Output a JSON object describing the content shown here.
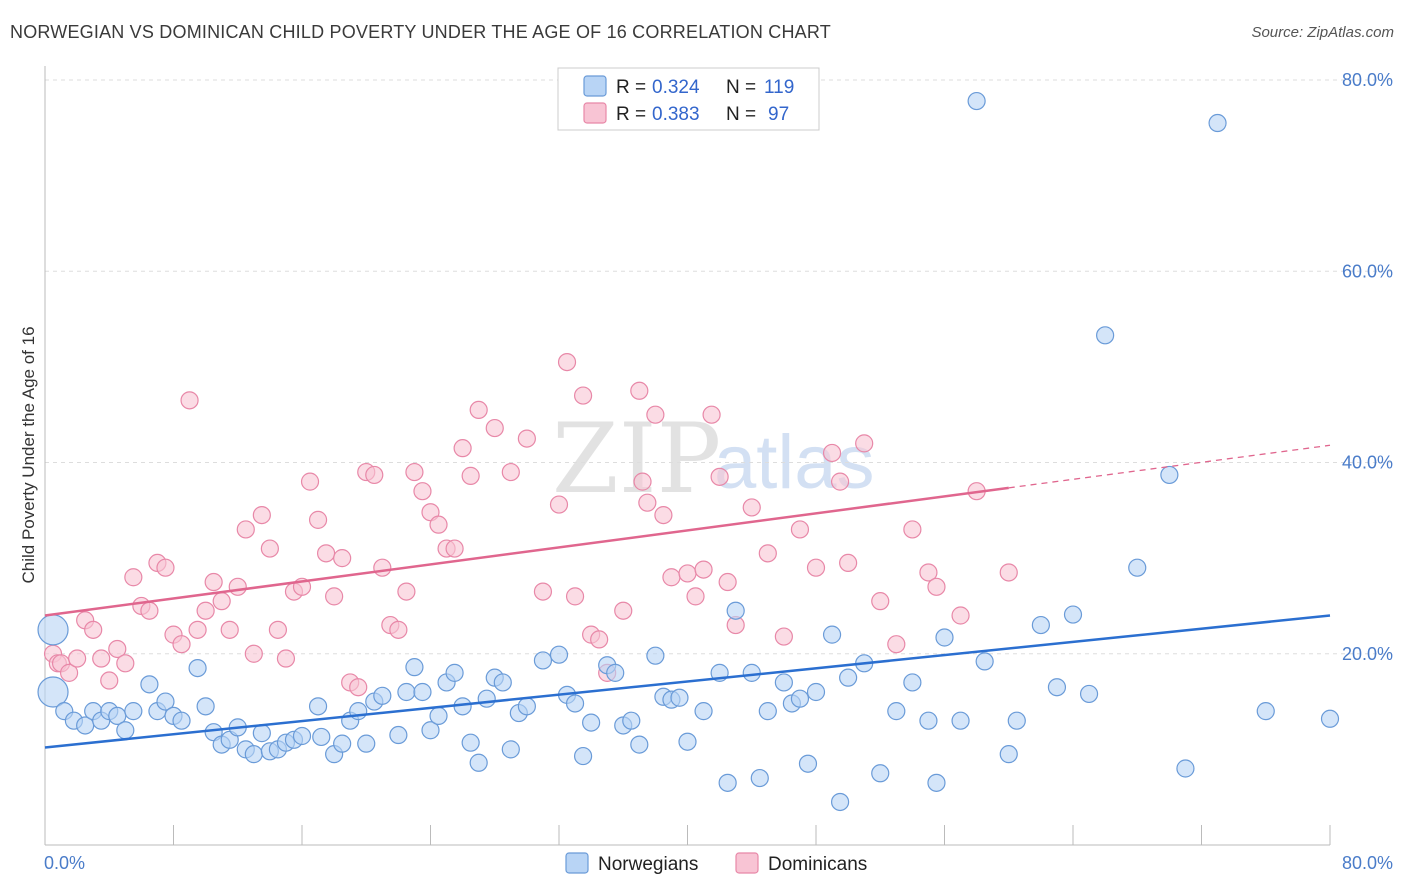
{
  "header": {
    "title": "NORWEGIAN VS DOMINICAN CHILD POVERTY UNDER THE AGE OF 16 CORRELATION CHART",
    "source": "Source: ZipAtlas.com"
  },
  "watermark": {
    "zip": "ZIP",
    "atlas": "atlas"
  },
  "legend": {
    "r_label": "R =",
    "n_label": "N =",
    "rows": [
      {
        "r": "0.324",
        "n": "119"
      },
      {
        "r": "0.383",
        "n": "97"
      }
    ]
  },
  "colors": {
    "norwegian_fill": "#b8d4f5",
    "norwegian_stroke": "#6a9bd8",
    "norwegian_line": "#2b6fd0",
    "dominican_fill": "#f8c4d4",
    "dominican_stroke": "#e888a8",
    "dominican_line": "#e0668e",
    "axis_text": "#4a7cc9",
    "grid": "#dddddd"
  },
  "chart_data": {
    "type": "scatter",
    "title": "NORWEGIAN VS DOMINICAN CHILD POVERTY UNDER THE AGE OF 16 CORRELATION CHART",
    "xlabel": "",
    "ylabel": "Child Poverty Under the Age of 16",
    "xlim": [
      0,
      80
    ],
    "ylim": [
      0,
      80
    ],
    "x_tick_labels": [
      "0.0%",
      "80.0%"
    ],
    "y_ticks": [
      20,
      40,
      60,
      80
    ],
    "y_tick_labels": [
      "20.0%",
      "40.0%",
      "60.0%",
      "80.0%"
    ],
    "grid": true,
    "legend_position": "bottom",
    "series": [
      {
        "name": "Norwegians",
        "trend": {
          "x": [
            0,
            80
          ],
          "y": [
            10.2,
            24.0
          ],
          "dashed_from": null
        },
        "points": [
          [
            0.5,
            22.5
          ],
          [
            0.5,
            16
          ],
          [
            1.2,
            14
          ],
          [
            1.8,
            13
          ],
          [
            2.5,
            12.5
          ],
          [
            3,
            14
          ],
          [
            3.5,
            13
          ],
          [
            4,
            14
          ],
          [
            4.5,
            13.5
          ],
          [
            5,
            12
          ],
          [
            5.5,
            14
          ],
          [
            6.5,
            16.8
          ],
          [
            7,
            14
          ],
          [
            7.5,
            15
          ],
          [
            8,
            13.5
          ],
          [
            8.5,
            13
          ],
          [
            9.5,
            18.5
          ],
          [
            10,
            14.5
          ],
          [
            10.5,
            11.8
          ],
          [
            11,
            10.5
          ],
          [
            11.5,
            11
          ],
          [
            12,
            12.3
          ],
          [
            12.5,
            10
          ],
          [
            13,
            9.5
          ],
          [
            13.5,
            11.7
          ],
          [
            14,
            9.8
          ],
          [
            14.5,
            10
          ],
          [
            15,
            10.7
          ],
          [
            15.5,
            11
          ],
          [
            16,
            11.4
          ],
          [
            17,
            14.5
          ],
          [
            17.2,
            11.3
          ],
          [
            18,
            9.5
          ],
          [
            18.5,
            10.6
          ],
          [
            19,
            13
          ],
          [
            19.5,
            14
          ],
          [
            20,
            10.6
          ],
          [
            20.5,
            15
          ],
          [
            21,
            15.6
          ],
          [
            22,
            11.5
          ],
          [
            22.5,
            16
          ],
          [
            23,
            18.6
          ],
          [
            23.5,
            16
          ],
          [
            24,
            12
          ],
          [
            24.5,
            13.5
          ],
          [
            25,
            17
          ],
          [
            25.5,
            18
          ],
          [
            26,
            14.5
          ],
          [
            26.5,
            10.7
          ],
          [
            27,
            8.6
          ],
          [
            27.5,
            15.3
          ],
          [
            28,
            17.5
          ],
          [
            28.5,
            17
          ],
          [
            29,
            10
          ],
          [
            29.5,
            13.8
          ],
          [
            30,
            14.5
          ],
          [
            31,
            19.3
          ],
          [
            32,
            19.9
          ],
          [
            32.5,
            15.7
          ],
          [
            33,
            14.8
          ],
          [
            33.5,
            9.3
          ],
          [
            34,
            12.8
          ],
          [
            35,
            18.8
          ],
          [
            35.5,
            18
          ],
          [
            36,
            12.5
          ],
          [
            36.5,
            13
          ],
          [
            37,
            10.5
          ],
          [
            38,
            19.8
          ],
          [
            38.5,
            15.5
          ],
          [
            39,
            15.2
          ],
          [
            39.5,
            15.4
          ],
          [
            40,
            10.8
          ],
          [
            41,
            14
          ],
          [
            42,
            18
          ],
          [
            42.5,
            6.5
          ],
          [
            43,
            24.5
          ],
          [
            44,
            18
          ],
          [
            44.5,
            7
          ],
          [
            45,
            14
          ],
          [
            46,
            17
          ],
          [
            46.5,
            14.8
          ],
          [
            47,
            15.3
          ],
          [
            47.5,
            8.5
          ],
          [
            48,
            16
          ],
          [
            49,
            22
          ],
          [
            49.5,
            4.5
          ],
          [
            50,
            17.5
          ],
          [
            51,
            19
          ],
          [
            52,
            7.5
          ],
          [
            53,
            14
          ],
          [
            54,
            17
          ],
          [
            55,
            13
          ],
          [
            55.5,
            6.5
          ],
          [
            56,
            21.7
          ],
          [
            57,
            13
          ],
          [
            58,
            77.8
          ],
          [
            58.5,
            19.2
          ],
          [
            60,
            9.5
          ],
          [
            60.5,
            13
          ],
          [
            62,
            23
          ],
          [
            63,
            16.5
          ],
          [
            64,
            24.1
          ],
          [
            65,
            15.8
          ],
          [
            66,
            53.3
          ],
          [
            68,
            29
          ],
          [
            70,
            38.7
          ],
          [
            71,
            8
          ],
          [
            73,
            75.5
          ],
          [
            76,
            14
          ],
          [
            80,
            13.2
          ]
        ]
      },
      {
        "name": "Dominicans",
        "trend": {
          "x": [
            0,
            80
          ],
          "y": [
            24.0,
            41.8
          ],
          "dashed_from": 60
        },
        "points": [
          [
            0.5,
            20
          ],
          [
            0.8,
            19
          ],
          [
            1,
            19
          ],
          [
            1.5,
            18
          ],
          [
            2,
            19.5
          ],
          [
            2.5,
            23.5
          ],
          [
            3,
            22.5
          ],
          [
            3.5,
            19.5
          ],
          [
            4,
            17.2
          ],
          [
            4.5,
            20.5
          ],
          [
            5,
            19
          ],
          [
            5.5,
            28
          ],
          [
            6,
            25
          ],
          [
            6.5,
            24.5
          ],
          [
            7,
            29.5
          ],
          [
            7.5,
            29
          ],
          [
            8,
            22
          ],
          [
            8.5,
            21
          ],
          [
            9,
            46.5
          ],
          [
            9.5,
            22.5
          ],
          [
            10,
            24.5
          ],
          [
            10.5,
            27.5
          ],
          [
            11,
            25.5
          ],
          [
            11.5,
            22.5
          ],
          [
            12,
            27
          ],
          [
            12.5,
            33
          ],
          [
            13,
            20
          ],
          [
            13.5,
            34.5
          ],
          [
            14,
            31
          ],
          [
            14.5,
            22.5
          ],
          [
            15,
            19.5
          ],
          [
            15.5,
            26.5
          ],
          [
            16,
            27
          ],
          [
            16.5,
            38
          ],
          [
            17,
            34
          ],
          [
            17.5,
            30.5
          ],
          [
            18,
            26
          ],
          [
            18.5,
            30
          ],
          [
            19,
            17
          ],
          [
            19.5,
            16.5
          ],
          [
            20,
            39
          ],
          [
            20.5,
            38.7
          ],
          [
            21,
            29
          ],
          [
            21.5,
            23
          ],
          [
            22,
            22.5
          ],
          [
            22.5,
            26.5
          ],
          [
            23,
            39
          ],
          [
            23.5,
            37
          ],
          [
            24,
            34.8
          ],
          [
            24.5,
            33.5
          ],
          [
            25,
            31
          ],
          [
            25.5,
            31
          ],
          [
            26,
            41.5
          ],
          [
            26.5,
            38.6
          ],
          [
            27,
            45.5
          ],
          [
            28,
            43.6
          ],
          [
            29,
            39
          ],
          [
            30,
            42.5
          ],
          [
            31,
            26.5
          ],
          [
            32,
            35.6
          ],
          [
            32.5,
            50.5
          ],
          [
            33,
            26
          ],
          [
            33.5,
            47
          ],
          [
            34,
            22
          ],
          [
            34.5,
            21.5
          ],
          [
            35,
            18
          ],
          [
            36,
            24.5
          ],
          [
            37,
            47.5
          ],
          [
            37.2,
            38
          ],
          [
            37.5,
            35.8
          ],
          [
            38,
            45
          ],
          [
            38.5,
            34.5
          ],
          [
            39,
            28
          ],
          [
            40,
            28.4
          ],
          [
            40.5,
            26
          ],
          [
            41,
            28.8
          ],
          [
            41.5,
            45
          ],
          [
            42,
            38.5
          ],
          [
            42.5,
            27.5
          ],
          [
            43,
            23
          ],
          [
            44,
            35.3
          ],
          [
            45,
            30.5
          ],
          [
            46,
            21.8
          ],
          [
            47,
            33
          ],
          [
            48,
            29
          ],
          [
            49,
            41
          ],
          [
            49.5,
            38
          ],
          [
            50,
            29.5
          ],
          [
            51,
            42
          ],
          [
            52,
            25.5
          ],
          [
            53,
            21
          ],
          [
            54,
            33
          ],
          [
            55,
            28.5
          ],
          [
            55.5,
            27
          ],
          [
            57,
            24
          ],
          [
            58,
            37
          ],
          [
            60,
            28.5
          ]
        ]
      }
    ]
  }
}
